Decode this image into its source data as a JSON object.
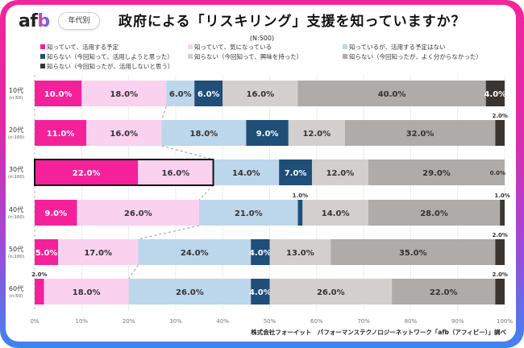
{
  "header": {
    "logo_a": "af",
    "logo_b": "b",
    "badge": "年代別",
    "title": "政府による「リスキリング」支援を知っていますか？",
    "sample": "(N:500)"
  },
  "footer": {
    "credit": "株式会社フォーイット　パフォーマンステクノロジーネットワーク「afb（アフィビー）」調べ"
  },
  "colors": {
    "frame_top": "#f2259c",
    "frame_bottom": "#3f84f0"
  },
  "chart_data": {
    "type": "bar",
    "orientation": "horizontal",
    "stacked": "100%",
    "title": "政府による「リスキリング」支援を知っていますか？",
    "subtitle": "(N:500)",
    "xlim": [
      0,
      100
    ],
    "x_ticks": [
      "0%",
      "10%",
      "20%",
      "30%",
      "40%",
      "50%",
      "60%",
      "70%",
      "80%",
      "90%",
      "100%"
    ],
    "grid": true,
    "legend_position": "top",
    "highlight_row": 2,
    "highlight_span": [
      0,
      1
    ],
    "categories": [
      {
        "label": "10代",
        "n": "(n:50)"
      },
      {
        "label": "20代",
        "n": "(n:100)"
      },
      {
        "label": "30代",
        "n": "(n:100)"
      },
      {
        "label": "40代",
        "n": "(n:100)"
      },
      {
        "label": "50代",
        "n": "(n:100)"
      },
      {
        "label": "60代",
        "n": "(n:50)"
      }
    ],
    "series": [
      {
        "name": "知っていて、活用する予定",
        "color": "#f5219b",
        "label_color": "#ffffff",
        "values": [
          10.0,
          11.0,
          22.0,
          9.0,
          5.0,
          2.0
        ]
      },
      {
        "name": "知っていて、気になっている",
        "color": "#fbd1f0",
        "label_color": "#333333",
        "values": [
          18.0,
          16.0,
          16.0,
          26.0,
          17.0,
          18.0
        ]
      },
      {
        "name": "知っているが、活用する予定はない",
        "color": "#bcd6ec",
        "label_color": "#333333",
        "values": [
          6.0,
          18.0,
          14.0,
          21.0,
          24.0,
          26.0
        ]
      },
      {
        "name": "知らない（今回知って、活用しようと思った）",
        "color": "#1f4e79",
        "label_color": "#ffffff",
        "values": [
          6.0,
          9.0,
          7.0,
          1.0,
          4.0,
          4.0
        ]
      },
      {
        "name": "知らない（今回知って、興味を持った）",
        "color": "#d3cfcf",
        "label_color": "#333333",
        "values": [
          16.0,
          12.0,
          12.0,
          14.0,
          13.0,
          26.0
        ]
      },
      {
        "name": "知らない（今回知ったが、よく分からなかった）",
        "color": "#aeaba8",
        "label_color": "#333333",
        "values": [
          40.0,
          32.0,
          29.0,
          28.0,
          35.0,
          22.0
        ]
      },
      {
        "name": "知らない（今回知ったが、活用しないと思う）",
        "color": "#3b3532",
        "label_color": "#ffffff",
        "values": [
          4.0,
          2.0,
          0.0,
          1.0,
          2.0,
          2.0
        ]
      }
    ],
    "value_labels": [
      [
        "10.0%",
        "18.0%",
        "6.0%",
        "6.0%",
        "16.0%",
        "40.0%",
        "4.0%"
      ],
      [
        "11.0%",
        "16.0%",
        "18.0%",
        "9.0%",
        "12.0%",
        "32.0%",
        "2.0%"
      ],
      [
        "22.0%",
        "16.0%",
        "14.0%",
        "7.0%",
        "12.0%",
        "29.0%",
        "0.0%"
      ],
      [
        "9.0%",
        "26.0%",
        "21.0%",
        "1.0%",
        "14.0%",
        "28.0%",
        "1.0%"
      ],
      [
        "5.0%",
        "17.0%",
        "24.0%",
        "4.0%",
        "13.0%",
        "35.0%",
        "2.0%"
      ],
      [
        "2.0%",
        "18.0%",
        "26.0%",
        "4.0%",
        "26.0%",
        "22.0%",
        "2.0%"
      ]
    ]
  }
}
